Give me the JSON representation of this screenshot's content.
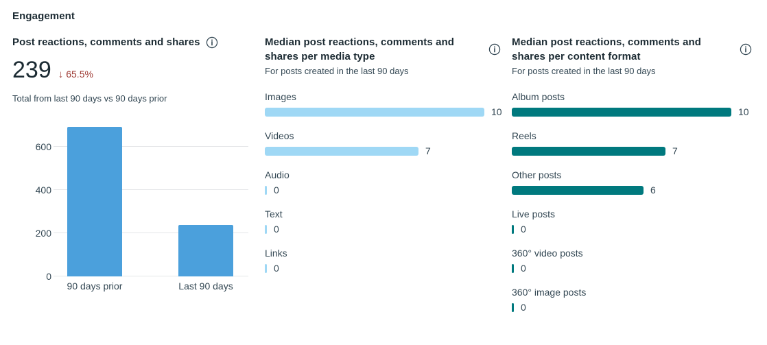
{
  "header": {
    "title": "Engagement"
  },
  "colors": {
    "text_primary": "#1c2b33",
    "text_secondary": "#344854",
    "negative_red": "#9e3a33",
    "gridline": "#e4e6e8",
    "bar_blue": "#4ba0dc",
    "bar_light_blue": "#9fd8f5",
    "bar_teal": "#00797e"
  },
  "left_panel": {
    "metric_value": "239",
    "trend_arrow": "↓",
    "trend_percent": "65.5%",
    "caption": "Total from last 90 days vs 90 days prior"
  },
  "icons": {
    "info": "info-icon"
  },
  "chart_data": [
    {
      "id": "post-reactions-total",
      "type": "bar",
      "orientation": "vertical",
      "title": "Post reactions, comments and shares",
      "categories": [
        "90 days prior",
        "Last 90 days"
      ],
      "values": [
        692,
        239
      ],
      "yticks": [
        0,
        200,
        400,
        600
      ],
      "ylim": [
        0,
        740
      ],
      "grid": true,
      "legend": "none",
      "bar_color": "#4ba0dc"
    },
    {
      "id": "median-per-media-type",
      "type": "bar",
      "orientation": "horizontal",
      "title": "Median post reactions, comments and shares per media type",
      "subtitle": "For posts created in the last 90 days",
      "categories": [
        "Images",
        "Videos",
        "Audio",
        "Text",
        "Links"
      ],
      "values": [
        10,
        7,
        0,
        0,
        0
      ],
      "xlim": [
        0,
        10
      ],
      "grid": false,
      "data_labels": true,
      "bar_color": "#9fd8f5"
    },
    {
      "id": "median-per-content-format",
      "type": "bar",
      "orientation": "horizontal",
      "title": "Median post reactions, comments and shares per content format",
      "subtitle": "For posts created in the last 90 days",
      "categories": [
        "Album posts",
        "Reels",
        "Other posts",
        "Live posts",
        "360° video posts",
        "360° image posts"
      ],
      "values": [
        10,
        7,
        6,
        0,
        0,
        0
      ],
      "xlim": [
        0,
        10
      ],
      "grid": false,
      "data_labels": true,
      "bar_color": "#00797e"
    }
  ]
}
